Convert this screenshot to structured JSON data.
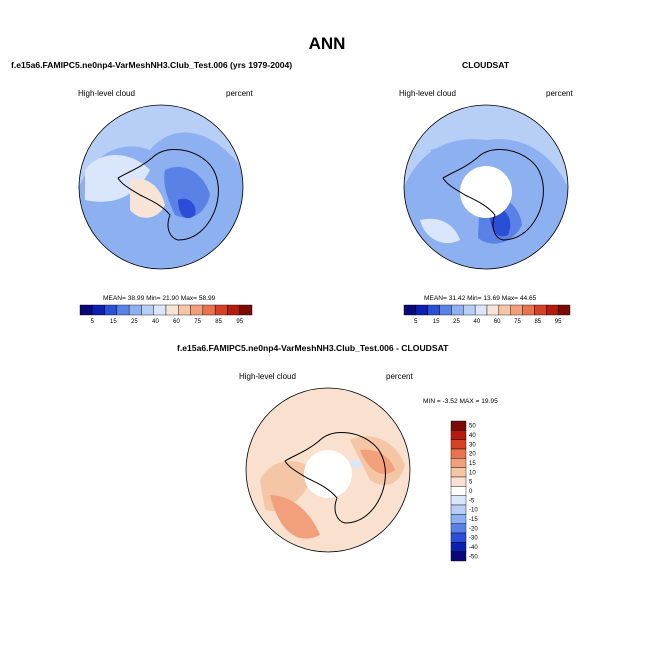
{
  "title": "ANN",
  "panels": [
    {
      "id": "model",
      "title": "f.e15a6.FAMIPC5.ne0np4-VarMeshNH3.Club_Test.006 (yrs 1979-2004)",
      "variable": "High-level cloud",
      "units": "percent",
      "stats": "MEAN= 38.99  Min= 21.90  Max= 58.99",
      "colorbar_labels": [
        "5",
        "15",
        "25",
        "40",
        "60",
        "75",
        "85",
        "95"
      ]
    },
    {
      "id": "obs",
      "title": "CLOUDSAT",
      "variable": "High-level cloud",
      "units": "percent",
      "stats": "MEAN= 31.42  Min= 13.69  Max= 44.65",
      "colorbar_labels": [
        "5",
        "15",
        "25",
        "40",
        "60",
        "75",
        "85",
        "95"
      ]
    },
    {
      "id": "diff",
      "title": "f.e15a6.FAMIPC5.ne0np4-VarMeshNH3.Club_Test.006 - CLOUDSAT",
      "variable": "High-level cloud",
      "units": "percent",
      "stats": "MIN = -3.52 MAX =  19.95",
      "colorbar_labels": [
        "50",
        "40",
        "30",
        "20",
        "15",
        "10",
        "5",
        "0",
        "-5",
        "-10",
        "-15",
        "-20",
        "-30",
        "-40",
        "-50"
      ]
    }
  ],
  "colors": {
    "abs_scale": [
      "#08087a",
      "#0d1fb0",
      "#2a4fd6",
      "#5a82e6",
      "#8db0f0",
      "#b7cff7",
      "#d9e6fb",
      "#f7e4d6",
      "#f5c6a6",
      "#f2a07c",
      "#e9724f",
      "#d64225",
      "#b51c10",
      "#7a0a05"
    ],
    "diff_scale": [
      "#7a0a05",
      "#b51c10",
      "#d64225",
      "#e9724f",
      "#f2a07c",
      "#f5c6a6",
      "#f9e0cf",
      "#ffffff",
      "#dbe6fb",
      "#b7cff7",
      "#8db0f0",
      "#5a82e6",
      "#2a4fd6",
      "#0d1fb0",
      "#08087a"
    ]
  }
}
